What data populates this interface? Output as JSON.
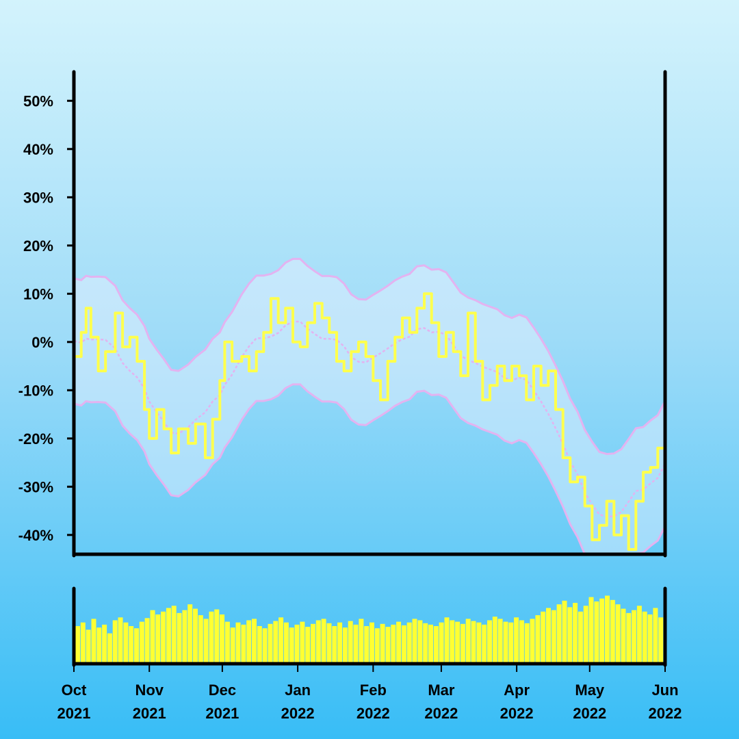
{
  "chart_data": {
    "type": "line",
    "y_ticks": [
      "50%",
      "40%",
      "30%",
      "20%",
      "10%",
      "0%",
      "-10%",
      "-20%",
      "-30%",
      "-40%"
    ],
    "y_tick_values": [
      50,
      40,
      30,
      20,
      10,
      0,
      -10,
      -20,
      -30,
      -40
    ],
    "ylim": [
      -44,
      56
    ],
    "x_ticks": [
      {
        "month": "Oct",
        "year": "2021",
        "date": "2021-10-01"
      },
      {
        "month": "Nov",
        "year": "2021",
        "date": "2021-11-01"
      },
      {
        "month": "Dec",
        "year": "2021",
        "date": "2021-12-01"
      },
      {
        "month": "Jan",
        "year": "2022",
        "date": "2022-01-01"
      },
      {
        "month": "Feb",
        "year": "2022",
        "date": "2022-02-01"
      },
      {
        "month": "Mar",
        "year": "2022",
        "date": "2022-03-01"
      },
      {
        "month": "Apr",
        "year": "2022",
        "date": "2022-04-01"
      },
      {
        "month": "May",
        "year": "2022",
        "date": "2022-05-01"
      },
      {
        "month": "Jun",
        "year": "2022",
        "date": "2022-06-01"
      }
    ],
    "xlim": [
      "2021-10-01",
      "2022-06-01"
    ],
    "grid": false,
    "colors": {
      "line": "#ffff4d",
      "band": "#e3b3f0",
      "band_fill": "#eaf2ff",
      "volume": "#ffff33",
      "axis": "#000000"
    },
    "series_percent_change": [
      {
        "date": "2021-10-01",
        "value": -3
      },
      {
        "date": "2021-10-04",
        "value": 2
      },
      {
        "date": "2021-10-06",
        "value": 7
      },
      {
        "date": "2021-10-08",
        "value": 1
      },
      {
        "date": "2021-10-11",
        "value": -6
      },
      {
        "date": "2021-10-14",
        "value": -2
      },
      {
        "date": "2021-10-18",
        "value": 6
      },
      {
        "date": "2021-10-21",
        "value": -1
      },
      {
        "date": "2021-10-24",
        "value": 1
      },
      {
        "date": "2021-10-27",
        "value": -4
      },
      {
        "date": "2021-10-30",
        "value": -14
      },
      {
        "date": "2021-11-01",
        "value": -20
      },
      {
        "date": "2021-11-04",
        "value": -14
      },
      {
        "date": "2021-11-07",
        "value": -18
      },
      {
        "date": "2021-11-10",
        "value": -23
      },
      {
        "date": "2021-11-13",
        "value": -18
      },
      {
        "date": "2021-11-17",
        "value": -21
      },
      {
        "date": "2021-11-20",
        "value": -17
      },
      {
        "date": "2021-11-24",
        "value": -24
      },
      {
        "date": "2021-11-27",
        "value": -16
      },
      {
        "date": "2021-11-30",
        "value": -8
      },
      {
        "date": "2021-12-02",
        "value": 0
      },
      {
        "date": "2021-12-05",
        "value": -4
      },
      {
        "date": "2021-12-09",
        "value": -3
      },
      {
        "date": "2021-12-12",
        "value": -6
      },
      {
        "date": "2021-12-15",
        "value": -2
      },
      {
        "date": "2021-12-18",
        "value": 2
      },
      {
        "date": "2021-12-21",
        "value": 9
      },
      {
        "date": "2021-12-24",
        "value": 4
      },
      {
        "date": "2021-12-27",
        "value": 7
      },
      {
        "date": "2021-12-30",
        "value": 0
      },
      {
        "date": "2022-01-02",
        "value": -1
      },
      {
        "date": "2022-01-05",
        "value": 4
      },
      {
        "date": "2022-01-08",
        "value": 8
      },
      {
        "date": "2022-01-11",
        "value": 5
      },
      {
        "date": "2022-01-14",
        "value": 2
      },
      {
        "date": "2022-01-17",
        "value": -4
      },
      {
        "date": "2022-01-20",
        "value": -6
      },
      {
        "date": "2022-01-23",
        "value": -2
      },
      {
        "date": "2022-01-26",
        "value": 0
      },
      {
        "date": "2022-01-29",
        "value": -3
      },
      {
        "date": "2022-02-01",
        "value": -8
      },
      {
        "date": "2022-02-04",
        "value": -12
      },
      {
        "date": "2022-02-07",
        "value": -4
      },
      {
        "date": "2022-02-10",
        "value": 1
      },
      {
        "date": "2022-02-13",
        "value": 5
      },
      {
        "date": "2022-02-16",
        "value": 2
      },
      {
        "date": "2022-02-19",
        "value": 7
      },
      {
        "date": "2022-02-22",
        "value": 10
      },
      {
        "date": "2022-02-25",
        "value": 4
      },
      {
        "date": "2022-02-28",
        "value": -3
      },
      {
        "date": "2022-03-03",
        "value": 2
      },
      {
        "date": "2022-03-06",
        "value": -2
      },
      {
        "date": "2022-03-09",
        "value": -7
      },
      {
        "date": "2022-03-12",
        "value": 6
      },
      {
        "date": "2022-03-15",
        "value": -4
      },
      {
        "date": "2022-03-18",
        "value": -12
      },
      {
        "date": "2022-03-21",
        "value": -9
      },
      {
        "date": "2022-03-24",
        "value": -5
      },
      {
        "date": "2022-03-27",
        "value": -8
      },
      {
        "date": "2022-03-30",
        "value": -5
      },
      {
        "date": "2022-04-02",
        "value": -7
      },
      {
        "date": "2022-04-05",
        "value": -12
      },
      {
        "date": "2022-04-08",
        "value": -5
      },
      {
        "date": "2022-04-11",
        "value": -9
      },
      {
        "date": "2022-04-14",
        "value": -6
      },
      {
        "date": "2022-04-17",
        "value": -14
      },
      {
        "date": "2022-04-20",
        "value": -24
      },
      {
        "date": "2022-04-23",
        "value": -29
      },
      {
        "date": "2022-04-26",
        "value": -28
      },
      {
        "date": "2022-04-29",
        "value": -34
      },
      {
        "date": "2022-05-02",
        "value": -41
      },
      {
        "date": "2022-05-05",
        "value": -38
      },
      {
        "date": "2022-05-08",
        "value": -33
      },
      {
        "date": "2022-05-11",
        "value": -40
      },
      {
        "date": "2022-05-14",
        "value": -36
      },
      {
        "date": "2022-05-17",
        "value": -43
      },
      {
        "date": "2022-05-20",
        "value": -33
      },
      {
        "date": "2022-05-23",
        "value": -27
      },
      {
        "date": "2022-05-26",
        "value": -26
      },
      {
        "date": "2022-05-29",
        "value": -22
      },
      {
        "date": "2022-06-01",
        "value": -18
      }
    ],
    "volume_relative": [
      0.5,
      0.55,
      0.45,
      0.6,
      0.48,
      0.52,
      0.4,
      0.58,
      0.62,
      0.55,
      0.5,
      0.47,
      0.56,
      0.61,
      0.72,
      0.66,
      0.7,
      0.75,
      0.78,
      0.68,
      0.72,
      0.8,
      0.74,
      0.65,
      0.6,
      0.7,
      0.73,
      0.66,
      0.56,
      0.48,
      0.55,
      0.52,
      0.58,
      0.6,
      0.5,
      0.47,
      0.53,
      0.57,
      0.62,
      0.55,
      0.48,
      0.52,
      0.56,
      0.49,
      0.53,
      0.58,
      0.6,
      0.54,
      0.5,
      0.55,
      0.48,
      0.57,
      0.52,
      0.6,
      0.5,
      0.55,
      0.47,
      0.53,
      0.49,
      0.52,
      0.56,
      0.51,
      0.55,
      0.6,
      0.58,
      0.54,
      0.52,
      0.5,
      0.55,
      0.62,
      0.58,
      0.56,
      0.53,
      0.6,
      0.57,
      0.55,
      0.52,
      0.58,
      0.63,
      0.6,
      0.56,
      0.55,
      0.62,
      0.58,
      0.54,
      0.6,
      0.65,
      0.7,
      0.75,
      0.72,
      0.8,
      0.85,
      0.76,
      0.82,
      0.7,
      0.78,
      0.9,
      0.84,
      0.88,
      0.92,
      0.86,
      0.8,
      0.74,
      0.68,
      0.72,
      0.78,
      0.7,
      0.66,
      0.75,
      0.62
    ]
  }
}
